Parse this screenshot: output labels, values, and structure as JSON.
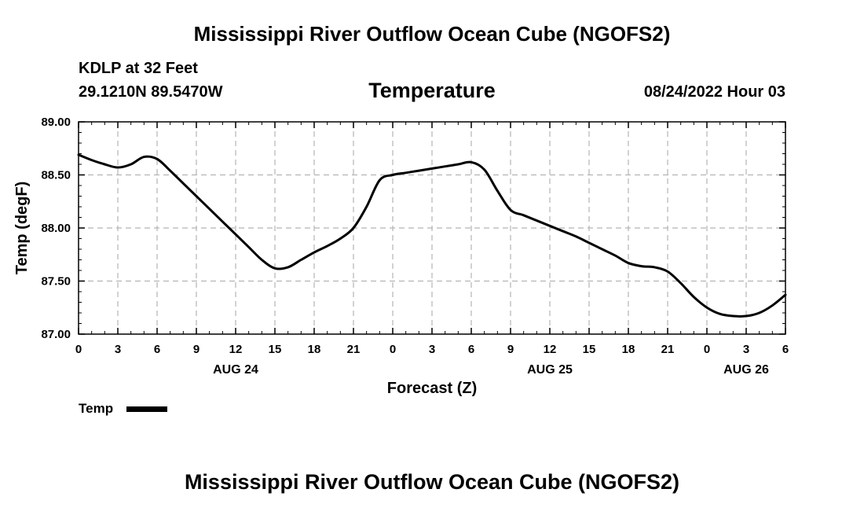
{
  "header": {
    "title": "Mississippi River Outflow Ocean Cube (NGOFS2)",
    "station": "KDLP at 32 Feet",
    "coords": "29.1210N  89.5470W",
    "variable": "Temperature",
    "datetime": "08/24/2022 Hour 03"
  },
  "footer": {
    "title": "Mississippi River Outflow Ocean Cube (NGOFS2)"
  },
  "chart_data": {
    "type": "line",
    "title": "Temperature",
    "xlabel": "Forecast (Z)",
    "ylabel": "Temp (degF)",
    "xlim": [
      0,
      54
    ],
    "ylim": [
      87.0,
      89.0
    ],
    "grid": true,
    "legend_position": "bottom-left",
    "x_ticks": [
      0,
      3,
      6,
      9,
      12,
      15,
      18,
      21,
      24,
      27,
      30,
      33,
      36,
      39,
      42,
      45,
      48,
      51,
      54
    ],
    "x_tick_labels": [
      "0",
      "3",
      "6",
      "9",
      "12",
      "15",
      "18",
      "21",
      "0",
      "3",
      "6",
      "9",
      "12",
      "15",
      "18",
      "21",
      "0",
      "3",
      "6"
    ],
    "day_labels": [
      {
        "x": 12,
        "label": "AUG 24"
      },
      {
        "x": 36,
        "label": "AUG 25"
      },
      {
        "x": 51,
        "label": "AUG 26"
      }
    ],
    "y_ticks": [
      87.0,
      87.5,
      88.0,
      88.5,
      89.0
    ],
    "y_tick_labels": [
      "87.00",
      "87.50",
      "88.00",
      "88.50",
      "89.00"
    ],
    "series": [
      {
        "name": "Temp",
        "color": "#000000",
        "x": [
          0,
          1,
          2,
          3,
          4,
          5,
          6,
          7,
          8,
          9,
          10,
          11,
          12,
          13,
          14,
          15,
          16,
          17,
          18,
          19,
          20,
          21,
          22,
          23,
          24,
          25,
          26,
          27,
          28,
          29,
          30,
          31,
          32,
          33,
          34,
          35,
          36,
          37,
          38,
          39,
          40,
          41,
          42,
          43,
          44,
          45,
          46,
          47,
          48,
          49,
          50,
          51,
          52,
          53,
          54
        ],
        "y": [
          88.69,
          88.64,
          88.6,
          88.57,
          88.6,
          88.67,
          88.65,
          88.54,
          88.42,
          88.3,
          88.18,
          88.06,
          87.94,
          87.82,
          87.7,
          87.62,
          87.63,
          87.7,
          87.77,
          87.83,
          87.9,
          88.0,
          88.2,
          88.45,
          88.5,
          88.52,
          88.54,
          88.56,
          88.58,
          88.6,
          88.62,
          88.55,
          88.35,
          88.17,
          88.12,
          88.07,
          88.02,
          87.97,
          87.92,
          87.86,
          87.8,
          87.74,
          87.67,
          87.64,
          87.63,
          87.59,
          87.48,
          87.35,
          87.25,
          87.19,
          87.17,
          87.17,
          87.2,
          87.27,
          87.37
        ]
      }
    ]
  }
}
